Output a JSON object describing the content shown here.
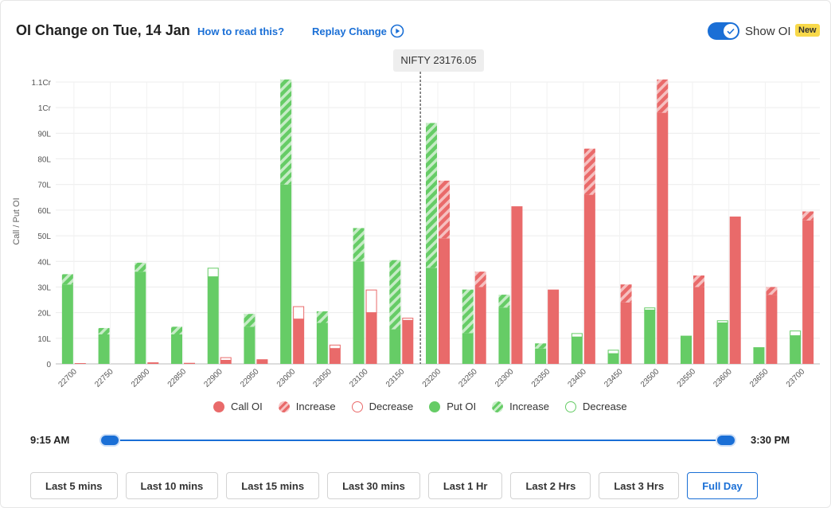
{
  "header": {
    "title": "OI Change on Tue, 14 Jan",
    "how_to_read": "How to read this?",
    "replay_change": "Replay Change",
    "show_oi_label": "Show OI",
    "new_badge": "New"
  },
  "spot": {
    "label": "NIFTY 23176.05",
    "value": 23176.05
  },
  "chart_data": {
    "type": "bar",
    "ylabel": "Call / Put OI",
    "ylim": [
      0,
      110
    ],
    "yunit": "L",
    "y_ticks": [
      {
        "value": 0,
        "label": "0"
      },
      {
        "value": 10,
        "label": "10L"
      },
      {
        "value": 20,
        "label": "20L"
      },
      {
        "value": 30,
        "label": "30L"
      },
      {
        "value": 40,
        "label": "40L"
      },
      {
        "value": 50,
        "label": "50L"
      },
      {
        "value": 60,
        "label": "60L"
      },
      {
        "value": 70,
        "label": "70L"
      },
      {
        "value": 80,
        "label": "80L"
      },
      {
        "value": 90,
        "label": "90L"
      },
      {
        "value": 100,
        "label": "1Cr"
      },
      {
        "value": 110,
        "label": "1.1Cr"
      }
    ],
    "categories": [
      "22700",
      "22750",
      "22800",
      "22850",
      "22900",
      "22950",
      "23000",
      "23050",
      "23100",
      "23150",
      "23200",
      "23250",
      "23300",
      "23350",
      "23400",
      "23450",
      "23500",
      "23550",
      "23600",
      "23650",
      "23700"
    ],
    "series": [
      {
        "name": "Put OI",
        "color": "#66cc66",
        "base": [
          31,
          11.5,
          36,
          11.5,
          34,
          14.5,
          70,
          16,
          40,
          13.5,
          37.5,
          12,
          22,
          6,
          10.5,
          4,
          21,
          11,
          16,
          6.5,
          11
        ],
        "change": [
          4,
          2.5,
          3.5,
          3,
          3.5,
          5,
          41,
          4.5,
          13,
          27,
          56.5,
          17,
          5,
          2,
          1.5,
          1.5,
          1,
          0,
          1,
          0,
          2
        ],
        "change_type": [
          "increase",
          "increase",
          "increase",
          "increase",
          "decrease",
          "increase",
          "increase",
          "increase",
          "increase",
          "increase",
          "increase",
          "increase",
          "increase",
          "increase",
          "decrease",
          "decrease",
          "decrease",
          "increase",
          "decrease",
          "increase",
          "decrease"
        ]
      },
      {
        "name": "Call OI",
        "color": "#e96a6a",
        "base": [
          0.3,
          0,
          0.6,
          0.4,
          1.4,
          1.8,
          17.5,
          6,
          20,
          17,
          49,
          30,
          61.5,
          29,
          66,
          24,
          98,
          30,
          57.5,
          27,
          56
        ],
        "change": [
          0,
          0,
          0,
          0,
          1.2,
          0,
          5,
          1.5,
          9,
          1,
          22.5,
          6,
          0,
          0,
          18,
          7,
          13,
          4.5,
          0,
          3,
          3.5
        ],
        "change_type": [
          "increase",
          "increase",
          "increase",
          "increase",
          "decrease",
          "increase",
          "decrease",
          "decrease",
          "decrease",
          "decrease",
          "increase",
          "increase",
          "increase",
          "increase",
          "increase",
          "increase",
          "increase",
          "increase",
          "increase",
          "increase",
          "increase"
        ]
      }
    ],
    "legend": {
      "call_oi": "Call OI",
      "call_increase": "Increase",
      "call_decrease": "Decrease",
      "put_oi": "Put OI",
      "put_increase": "Increase",
      "put_decrease": "Decrease"
    },
    "legend_position": "bottom",
    "grid": true,
    "spot_marker": 23176.05
  },
  "time_range": {
    "start": "9:15 AM",
    "end": "3:30 PM"
  },
  "range_buttons": [
    {
      "label": "Last 5 mins",
      "active": false
    },
    {
      "label": "Last 10 mins",
      "active": false
    },
    {
      "label": "Last 15 mins",
      "active": false
    },
    {
      "label": "Last 30 mins",
      "active": false
    },
    {
      "label": "Last 1 Hr",
      "active": false
    },
    {
      "label": "Last 2 Hrs",
      "active": false
    },
    {
      "label": "Last 3 Hrs",
      "active": false
    },
    {
      "label": "Full Day",
      "active": true
    }
  ]
}
